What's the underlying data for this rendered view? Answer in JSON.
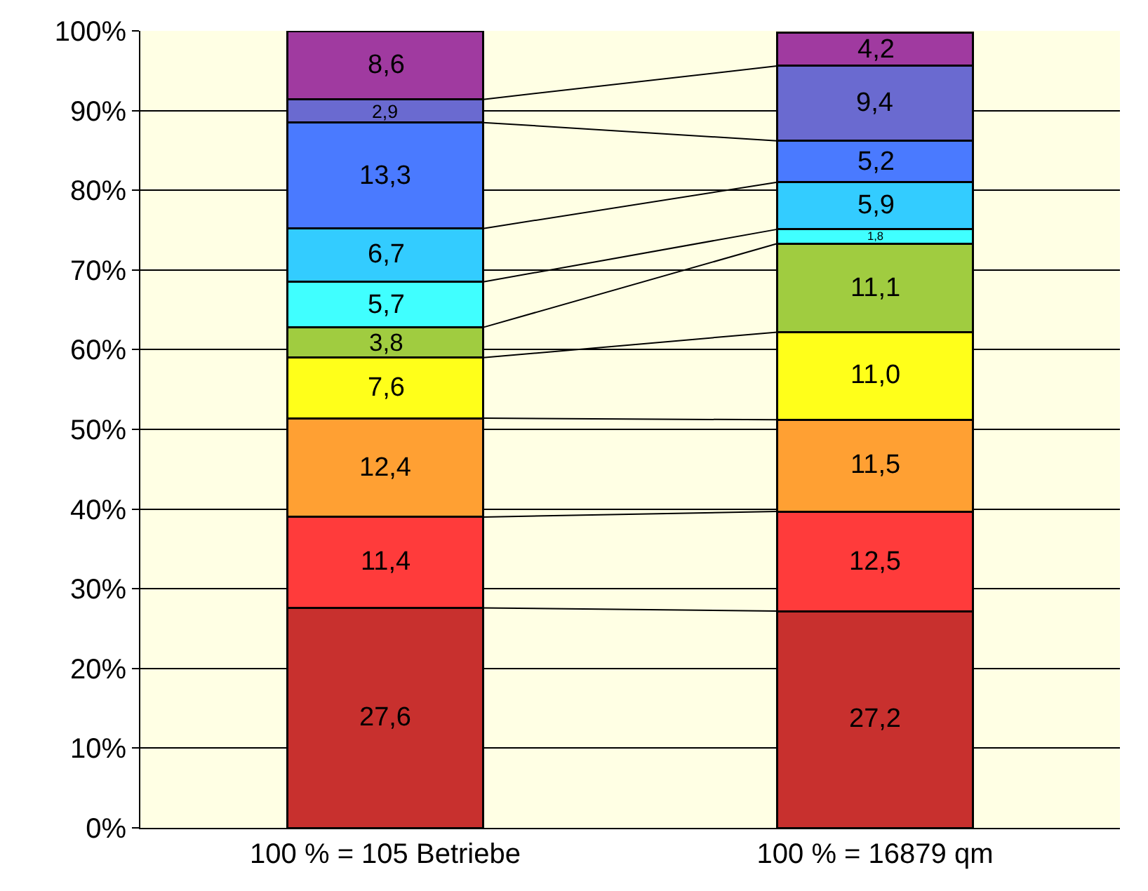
{
  "chart_data": {
    "type": "bar",
    "stacked": true,
    "categories": [
      "100 % = 105 Betriebe",
      "100 % = 16879 qm"
    ],
    "series": [
      {
        "color": "#c8302e",
        "values": [
          27.6,
          27.2
        ],
        "value_labels": [
          "27,6",
          "27,2"
        ]
      },
      {
        "color": "#ff3b3b",
        "values": [
          11.4,
          12.5
        ],
        "value_labels": [
          "11,4",
          "12,5"
        ]
      },
      {
        "color": "#ffa033",
        "values": [
          12.4,
          11.5
        ],
        "value_labels": [
          "12,4",
          "11,5"
        ]
      },
      {
        "color": "#ffff1a",
        "values": [
          7.6,
          11.0
        ],
        "value_labels": [
          "7,6",
          "11,0"
        ]
      },
      {
        "color": "#a0cc40",
        "values": [
          3.8,
          11.1
        ],
        "value_labels": [
          "3,8",
          "11,1"
        ]
      },
      {
        "color": "#40ffff",
        "values": [
          5.7,
          1.8
        ],
        "value_labels": [
          "5,7",
          "1,8"
        ]
      },
      {
        "color": "#33ccff",
        "values": [
          6.7,
          5.9
        ],
        "value_labels": [
          "6,7",
          "5,9"
        ]
      },
      {
        "color": "#4a7aff",
        "values": [
          13.3,
          5.2
        ],
        "value_labels": [
          "13,3",
          "5,2"
        ]
      },
      {
        "color": "#6a6ad0",
        "values": [
          2.9,
          9.4
        ],
        "value_labels": [
          "2,9",
          "9,4"
        ]
      },
      {
        "color": "#a03aa0",
        "values": [
          8.6,
          4.2
        ],
        "value_labels": [
          "8,6",
          "4,2"
        ]
      }
    ],
    "ylim": [
      0,
      100
    ],
    "yticks": [
      {
        "value": 0,
        "label": "0%"
      },
      {
        "value": 10,
        "label": "10%"
      },
      {
        "value": 20,
        "label": "20%"
      },
      {
        "value": 30,
        "label": "30%"
      },
      {
        "value": 40,
        "label": "40%"
      },
      {
        "value": 50,
        "label": "50%"
      },
      {
        "value": 60,
        "label": "60%"
      },
      {
        "value": 70,
        "label": "70%"
      },
      {
        "value": 80,
        "label": "80%"
      },
      {
        "value": 90,
        "label": "90%"
      },
      {
        "value": 100,
        "label": "100%"
      }
    ],
    "grid": "y"
  }
}
